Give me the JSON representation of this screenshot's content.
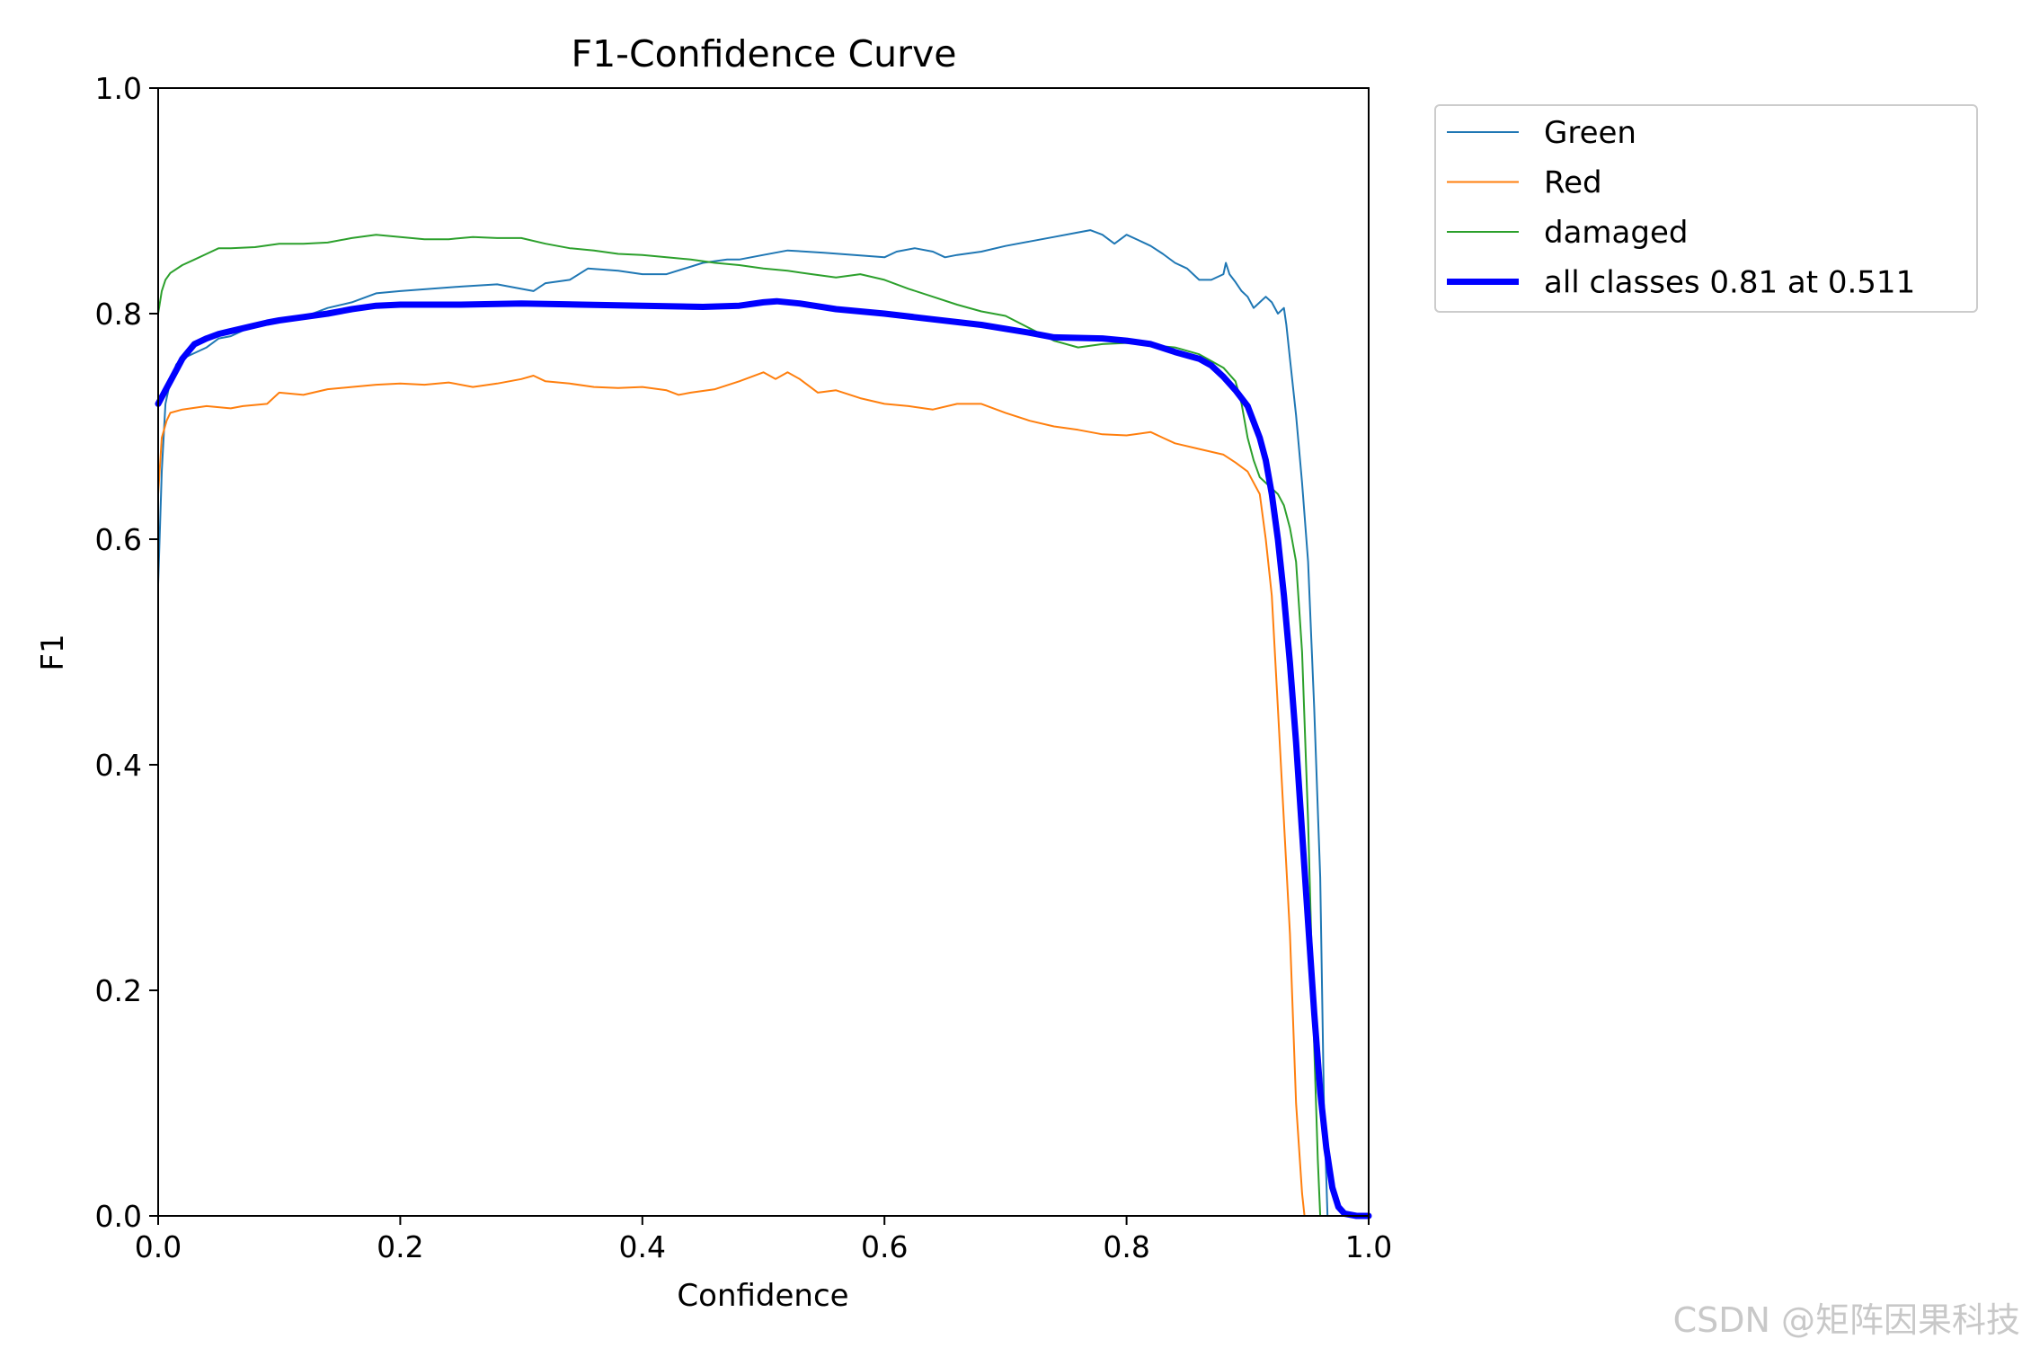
{
  "chart_data": {
    "type": "line",
    "title": "F1-Confidence Curve",
    "xlabel": "Confidence",
    "ylabel": "F1",
    "xlim": [
      0,
      1
    ],
    "ylim": [
      0,
      1
    ],
    "xticks": [
      "0.0",
      "0.2",
      "0.4",
      "0.6",
      "0.8",
      "1.0"
    ],
    "yticks": [
      "0.0",
      "0.2",
      "0.4",
      "0.6",
      "0.8",
      "1.0"
    ],
    "grid": false,
    "legend_position": "outside-top-right",
    "series": [
      {
        "name": "Green",
        "color": "#1f77b4",
        "width": 2,
        "points": [
          [
            0,
            0.56
          ],
          [
            0.003,
            0.66
          ],
          [
            0.006,
            0.72
          ],
          [
            0.01,
            0.74
          ],
          [
            0.015,
            0.755
          ],
          [
            0.02,
            0.76
          ],
          [
            0.03,
            0.765
          ],
          [
            0.04,
            0.77
          ],
          [
            0.05,
            0.778
          ],
          [
            0.06,
            0.78
          ],
          [
            0.07,
            0.785
          ],
          [
            0.08,
            0.789
          ],
          [
            0.1,
            0.793
          ],
          [
            0.12,
            0.797
          ],
          [
            0.14,
            0.805
          ],
          [
            0.16,
            0.81
          ],
          [
            0.18,
            0.818
          ],
          [
            0.2,
            0.82
          ],
          [
            0.25,
            0.824
          ],
          [
            0.28,
            0.826
          ],
          [
            0.3,
            0.822
          ],
          [
            0.31,
            0.82
          ],
          [
            0.32,
            0.827
          ],
          [
            0.34,
            0.83
          ],
          [
            0.355,
            0.84
          ],
          [
            0.38,
            0.838
          ],
          [
            0.4,
            0.835
          ],
          [
            0.42,
            0.835
          ],
          [
            0.45,
            0.845
          ],
          [
            0.47,
            0.848
          ],
          [
            0.48,
            0.848
          ],
          [
            0.5,
            0.852
          ],
          [
            0.52,
            0.856
          ],
          [
            0.55,
            0.854
          ],
          [
            0.6,
            0.85
          ],
          [
            0.61,
            0.855
          ],
          [
            0.625,
            0.858
          ],
          [
            0.64,
            0.855
          ],
          [
            0.65,
            0.85
          ],
          [
            0.66,
            0.852
          ],
          [
            0.68,
            0.855
          ],
          [
            0.7,
            0.86
          ],
          [
            0.72,
            0.864
          ],
          [
            0.74,
            0.868
          ],
          [
            0.76,
            0.872
          ],
          [
            0.77,
            0.874
          ],
          [
            0.78,
            0.87
          ],
          [
            0.79,
            0.862
          ],
          [
            0.8,
            0.87
          ],
          [
            0.81,
            0.865
          ],
          [
            0.82,
            0.86
          ],
          [
            0.83,
            0.853
          ],
          [
            0.84,
            0.845
          ],
          [
            0.85,
            0.84
          ],
          [
            0.855,
            0.835
          ],
          [
            0.86,
            0.83
          ],
          [
            0.87,
            0.83
          ],
          [
            0.88,
            0.835
          ],
          [
            0.882,
            0.845
          ],
          [
            0.885,
            0.835
          ],
          [
            0.89,
            0.828
          ],
          [
            0.895,
            0.82
          ],
          [
            0.9,
            0.815
          ],
          [
            0.905,
            0.805
          ],
          [
            0.91,
            0.81
          ],
          [
            0.915,
            0.815
          ],
          [
            0.92,
            0.81
          ],
          [
            0.925,
            0.8
          ],
          [
            0.93,
            0.805
          ],
          [
            0.932,
            0.79
          ],
          [
            0.935,
            0.76
          ],
          [
            0.94,
            0.71
          ],
          [
            0.945,
            0.65
          ],
          [
            0.95,
            0.58
          ],
          [
            0.955,
            0.45
          ],
          [
            0.96,
            0.3
          ],
          [
            0.963,
            0.1
          ],
          [
            0.966,
            0
          ],
          [
            1,
            0
          ]
        ]
      },
      {
        "name": "Red",
        "color": "#ff7f0e",
        "width": 2,
        "points": [
          [
            0,
            0.64
          ],
          [
            0.003,
            0.69
          ],
          [
            0.007,
            0.705
          ],
          [
            0.01,
            0.712
          ],
          [
            0.02,
            0.715
          ],
          [
            0.04,
            0.718
          ],
          [
            0.06,
            0.716
          ],
          [
            0.07,
            0.718
          ],
          [
            0.09,
            0.72
          ],
          [
            0.1,
            0.73
          ],
          [
            0.12,
            0.728
          ],
          [
            0.14,
            0.733
          ],
          [
            0.16,
            0.735
          ],
          [
            0.18,
            0.737
          ],
          [
            0.2,
            0.738
          ],
          [
            0.22,
            0.737
          ],
          [
            0.24,
            0.739
          ],
          [
            0.26,
            0.735
          ],
          [
            0.28,
            0.738
          ],
          [
            0.3,
            0.742
          ],
          [
            0.31,
            0.745
          ],
          [
            0.32,
            0.74
          ],
          [
            0.34,
            0.738
          ],
          [
            0.36,
            0.735
          ],
          [
            0.38,
            0.734
          ],
          [
            0.4,
            0.735
          ],
          [
            0.42,
            0.732
          ],
          [
            0.43,
            0.728
          ],
          [
            0.44,
            0.73
          ],
          [
            0.46,
            0.733
          ],
          [
            0.48,
            0.74
          ],
          [
            0.5,
            0.748
          ],
          [
            0.51,
            0.742
          ],
          [
            0.52,
            0.748
          ],
          [
            0.53,
            0.742
          ],
          [
            0.545,
            0.73
          ],
          [
            0.56,
            0.732
          ],
          [
            0.58,
            0.725
          ],
          [
            0.6,
            0.72
          ],
          [
            0.62,
            0.718
          ],
          [
            0.64,
            0.715
          ],
          [
            0.66,
            0.72
          ],
          [
            0.68,
            0.72
          ],
          [
            0.7,
            0.712
          ],
          [
            0.72,
            0.705
          ],
          [
            0.74,
            0.7
          ],
          [
            0.76,
            0.697
          ],
          [
            0.78,
            0.693
          ],
          [
            0.8,
            0.692
          ],
          [
            0.82,
            0.695
          ],
          [
            0.83,
            0.69
          ],
          [
            0.84,
            0.685
          ],
          [
            0.86,
            0.68
          ],
          [
            0.88,
            0.675
          ],
          [
            0.89,
            0.668
          ],
          [
            0.9,
            0.66
          ],
          [
            0.91,
            0.64
          ],
          [
            0.915,
            0.6
          ],
          [
            0.92,
            0.55
          ],
          [
            0.925,
            0.45
          ],
          [
            0.93,
            0.35
          ],
          [
            0.935,
            0.25
          ],
          [
            0.94,
            0.1
          ],
          [
            0.945,
            0.02
          ],
          [
            0.947,
            0
          ],
          [
            1,
            0
          ]
        ]
      },
      {
        "name": "damaged",
        "color": "#2ca02c",
        "width": 2,
        "points": [
          [
            0,
            0.8
          ],
          [
            0.003,
            0.82
          ],
          [
            0.006,
            0.83
          ],
          [
            0.01,
            0.836
          ],
          [
            0.02,
            0.843
          ],
          [
            0.03,
            0.848
          ],
          [
            0.04,
            0.853
          ],
          [
            0.05,
            0.858
          ],
          [
            0.06,
            0.858
          ],
          [
            0.08,
            0.859
          ],
          [
            0.1,
            0.862
          ],
          [
            0.12,
            0.862
          ],
          [
            0.14,
            0.863
          ],
          [
            0.16,
            0.867
          ],
          [
            0.18,
            0.87
          ],
          [
            0.2,
            0.868
          ],
          [
            0.22,
            0.866
          ],
          [
            0.24,
            0.866
          ],
          [
            0.26,
            0.868
          ],
          [
            0.28,
            0.867
          ],
          [
            0.3,
            0.867
          ],
          [
            0.32,
            0.862
          ],
          [
            0.34,
            0.858
          ],
          [
            0.36,
            0.856
          ],
          [
            0.38,
            0.853
          ],
          [
            0.4,
            0.852
          ],
          [
            0.42,
            0.85
          ],
          [
            0.44,
            0.848
          ],
          [
            0.46,
            0.845
          ],
          [
            0.48,
            0.843
          ],
          [
            0.5,
            0.84
          ],
          [
            0.52,
            0.838
          ],
          [
            0.54,
            0.835
          ],
          [
            0.56,
            0.832
          ],
          [
            0.58,
            0.835
          ],
          [
            0.6,
            0.83
          ],
          [
            0.62,
            0.822
          ],
          [
            0.64,
            0.815
          ],
          [
            0.66,
            0.808
          ],
          [
            0.68,
            0.802
          ],
          [
            0.7,
            0.798
          ],
          [
            0.72,
            0.787
          ],
          [
            0.74,
            0.776
          ],
          [
            0.76,
            0.77
          ],
          [
            0.78,
            0.773
          ],
          [
            0.8,
            0.774
          ],
          [
            0.82,
            0.772
          ],
          [
            0.84,
            0.77
          ],
          [
            0.86,
            0.764
          ],
          [
            0.87,
            0.758
          ],
          [
            0.88,
            0.752
          ],
          [
            0.89,
            0.74
          ],
          [
            0.895,
            0.72
          ],
          [
            0.9,
            0.69
          ],
          [
            0.905,
            0.67
          ],
          [
            0.91,
            0.655
          ],
          [
            0.92,
            0.645
          ],
          [
            0.925,
            0.64
          ],
          [
            0.93,
            0.63
          ],
          [
            0.935,
            0.61
          ],
          [
            0.94,
            0.58
          ],
          [
            0.945,
            0.5
          ],
          [
            0.95,
            0.35
          ],
          [
            0.955,
            0.15
          ],
          [
            0.958,
            0.05
          ],
          [
            0.96,
            0
          ],
          [
            1,
            0
          ]
        ]
      },
      {
        "name": "all classes 0.81 at 0.511",
        "color": "#0000ff",
        "width": 7,
        "points": [
          [
            0,
            0.72
          ],
          [
            0.005,
            0.73
          ],
          [
            0.01,
            0.74
          ],
          [
            0.02,
            0.76
          ],
          [
            0.03,
            0.773
          ],
          [
            0.04,
            0.778
          ],
          [
            0.05,
            0.782
          ],
          [
            0.07,
            0.787
          ],
          [
            0.09,
            0.792
          ],
          [
            0.1,
            0.794
          ],
          [
            0.12,
            0.797
          ],
          [
            0.14,
            0.8
          ],
          [
            0.16,
            0.804
          ],
          [
            0.18,
            0.807
          ],
          [
            0.2,
            0.808
          ],
          [
            0.25,
            0.808
          ],
          [
            0.3,
            0.809
          ],
          [
            0.35,
            0.808
          ],
          [
            0.4,
            0.807
          ],
          [
            0.45,
            0.806
          ],
          [
            0.48,
            0.807
          ],
          [
            0.5,
            0.81
          ],
          [
            0.511,
            0.811
          ],
          [
            0.53,
            0.809
          ],
          [
            0.56,
            0.804
          ],
          [
            0.6,
            0.8
          ],
          [
            0.64,
            0.795
          ],
          [
            0.68,
            0.79
          ],
          [
            0.72,
            0.783
          ],
          [
            0.74,
            0.779
          ],
          [
            0.78,
            0.778
          ],
          [
            0.8,
            0.776
          ],
          [
            0.82,
            0.773
          ],
          [
            0.84,
            0.766
          ],
          [
            0.86,
            0.76
          ],
          [
            0.87,
            0.754
          ],
          [
            0.88,
            0.744
          ],
          [
            0.89,
            0.732
          ],
          [
            0.9,
            0.718
          ],
          [
            0.91,
            0.69
          ],
          [
            0.915,
            0.67
          ],
          [
            0.92,
            0.64
          ],
          [
            0.925,
            0.6
          ],
          [
            0.93,
            0.55
          ],
          [
            0.935,
            0.49
          ],
          [
            0.94,
            0.42
          ],
          [
            0.945,
            0.34
          ],
          [
            0.95,
            0.26
          ],
          [
            0.955,
            0.18
          ],
          [
            0.96,
            0.11
          ],
          [
            0.965,
            0.06
          ],
          [
            0.97,
            0.025
          ],
          [
            0.975,
            0.008
          ],
          [
            0.98,
            0.002
          ],
          [
            0.99,
            0
          ],
          [
            1,
            0
          ]
        ]
      }
    ]
  },
  "watermark": "CSDN @矩阵因果科技"
}
